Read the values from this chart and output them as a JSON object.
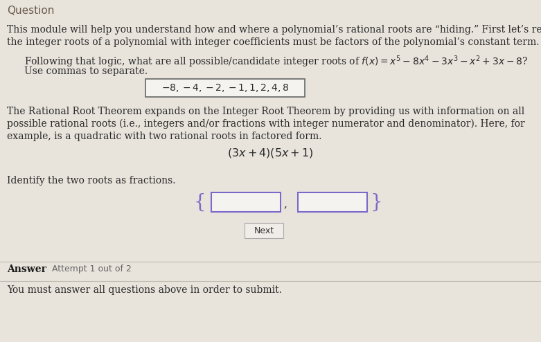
{
  "background_color": "#e8e4dc",
  "title": "Question",
  "title_color": "#6b5b4e",
  "body_text_color": "#2a2a2a",
  "intro_line1": "This module will help you understand how and where a polynomial’s rational roots are “hiding.” First let’s revisit the Integer R",
  "intro_line2": "the integer roots of a polynomial with integer coefficients must be factors of the polynomial’s constant term.",
  "q1_line1": "Following that logic, what are all possible/candidate integer roots of $f(x) = x^5 - 8x^4 - 3x^3 - x^2 + 3x - 8$?",
  "q1_line2": "Use commas to separate.",
  "answer_box_text": "$-8,-4,-2,-1,1,2,4,8$",
  "rational_line1": "The Rational Root Theorem expands on the Integer Root Theorem by providing us with information on all",
  "rational_line2": "possible rational roots (i.e., integers and/or fractions with integer numerator and denominator). Here, for",
  "rational_line3": "example, is a quadratic with two rational roots in factored form.",
  "factored_form": "$(3x + 4)(5x + 1)$",
  "identify_text": "Identify the two roots as fractions.",
  "next_button_text": "Next",
  "answer_label": "Answer",
  "attempt_text": "Attempt 1 out of 2",
  "submit_text": "You must answer all questions above in order to submit.",
  "input_box_color": "#f5f3ef",
  "input_border_color": "#7b68c8",
  "answer_box_border": "#666666",
  "next_button_border": "#aaaaaa",
  "next_button_bg": "#f0ede8",
  "curly_brace_color": "#7b68c8",
  "answer_bold_color": "#1a1a1a"
}
